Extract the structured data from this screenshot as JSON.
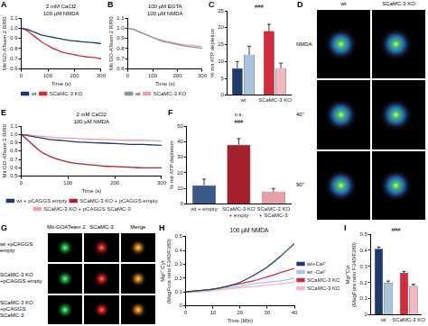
{
  "chart_data": [
    {
      "panel": "A",
      "type": "line",
      "annotations": [
        "2 mM CaCl2",
        "100 µM NMDA"
      ],
      "x_label": "Time (s)",
      "y_label": "Mit GO-ATeam 2 R/R0",
      "x": [
        0,
        20,
        40,
        60,
        80,
        100,
        120,
        140,
        160,
        180,
        200,
        220,
        240,
        260,
        280,
        300
      ],
      "series": [
        {
          "name": "wt",
          "color": "#1f3b6e",
          "values": [
            1.0,
            0.99,
            0.97,
            0.95,
            0.93,
            0.92,
            0.91,
            0.9,
            0.89,
            0.88,
            0.875,
            0.87,
            0.865,
            0.86,
            0.855,
            0.85
          ]
        },
        {
          "name": "SCaMC-3 KO",
          "color": "#d42a3c",
          "values": [
            1.0,
            0.98,
            0.94,
            0.9,
            0.86,
            0.83,
            0.8,
            0.78,
            0.76,
            0.75,
            0.74,
            0.73,
            0.72,
            0.715,
            0.71,
            0.7
          ]
        }
      ],
      "xlim": [
        0,
        300
      ],
      "xticks": [
        0,
        100,
        200,
        300
      ],
      "ylim": [
        0.6,
        1.1
      ],
      "yticks": [
        0.6,
        0.7,
        0.8,
        0.9,
        {
          "value": 1,
          "label": "1.0"
        },
        1.1
      ],
      "grid": false,
      "legend": "bottom"
    },
    {
      "panel": "B",
      "type": "line",
      "annotations": [
        "100 µM EGTA",
        "100 µM NMDA"
      ],
      "x_label": "Time (s)",
      "y_label": "Mit GO-ATeam 2 R/R0",
      "x": [
        0,
        20,
        40,
        60,
        80,
        100,
        120,
        140,
        160,
        180,
        200,
        220,
        240,
        260,
        280,
        300
      ],
      "series": [
        {
          "name": "wt",
          "color": "#8a93a6",
          "values": [
            1.0,
            0.99,
            0.97,
            0.95,
            0.93,
            0.91,
            0.89,
            0.87,
            0.86,
            0.85,
            0.84,
            0.83,
            0.82,
            0.815,
            0.81,
            0.8
          ]
        },
        {
          "name": "SCaMC-3 KO",
          "color": "#e8a0a8",
          "values": [
            1.0,
            0.99,
            0.97,
            0.95,
            0.93,
            0.91,
            0.895,
            0.88,
            0.87,
            0.86,
            0.85,
            0.84,
            0.835,
            0.83,
            0.825,
            0.82
          ]
        }
      ],
      "xlim": [
        0,
        300
      ],
      "xticks": [
        0,
        100,
        200,
        300
      ],
      "ylim": [
        0.6,
        1.1
      ],
      "yticks": [
        0.6,
        0.7,
        0.8,
        0.9,
        {
          "value": 1,
          "label": "1.0"
        },
        1.1
      ],
      "grid": false,
      "legend": "bottom"
    },
    {
      "panel": "C",
      "type": "bar",
      "annotations": [
        "###"
      ],
      "y_label": "% mit ATP depletion",
      "categories": [
        "wt",
        "SCaMC-3 KO"
      ],
      "series": [
        {
          "colors": [
            "#1f3b6e",
            "#d42a3c"
          ],
          "values": [
            8,
            19
          ],
          "errors": [
            2,
            2
          ]
        },
        {
          "colors": [
            "#a8c4e0",
            "#f0b8c0"
          ],
          "values": [
            12,
            8
          ],
          "errors": [
            2.5,
            1.5
          ]
        }
      ],
      "ylim": [
        0,
        25
      ],
      "yticks": [
        0,
        5,
        10,
        15,
        20,
        25
      ],
      "grid": false
    },
    {
      "panel": "E",
      "type": "line",
      "annotations": [
        "2 mM CaCl2",
        "100 µM NMDA"
      ],
      "x_label": "Time (s)",
      "y_label": "Mit GO-ATeam 2 R/R0",
      "x": [
        0,
        20,
        40,
        60,
        80,
        100,
        120,
        140,
        160,
        180,
        200,
        220,
        240,
        260,
        280,
        300
      ],
      "series": [
        {
          "name": "wt + pCAGGS empty",
          "color": "#1f3b6e",
          "values": [
            1.0,
            0.98,
            0.96,
            0.94,
            0.93,
            0.92,
            0.91,
            0.905,
            0.9,
            0.895,
            0.89,
            0.885,
            0.88,
            0.88,
            0.875,
            0.87
          ]
        },
        {
          "name": "SCaMC-3 KO + pCAGGS empty",
          "color": "#b0202e",
          "values": [
            1.0,
            0.9,
            0.8,
            0.74,
            0.7,
            0.67,
            0.65,
            0.64,
            0.63,
            0.62,
            0.615,
            0.61,
            0.605,
            0.6,
            0.6,
            0.6
          ]
        },
        {
          "name": "SCaMC-3 KO + pCAGGS SCaMC-3",
          "color": "#e8a0a8",
          "values": [
            1.0,
            0.99,
            0.98,
            0.97,
            0.96,
            0.955,
            0.95,
            0.945,
            0.94,
            0.94,
            0.935,
            0.93,
            0.93,
            0.93,
            0.925,
            0.92
          ]
        }
      ],
      "xlim": [
        0,
        300
      ],
      "xticks": [
        0,
        100,
        200,
        300
      ],
      "ylim": [
        0.5,
        1.1
      ],
      "yticks": [
        0.5,
        0.6,
        0.7,
        0.8,
        0.9,
        {
          "value": 1,
          "label": "1.0"
        },
        1.1
      ],
      "grid": false,
      "legend": "bottom"
    },
    {
      "panel": "F",
      "type": "bar",
      "annotations": [
        "n.s.",
        "###"
      ],
      "y_label": "% mit ATP depletion",
      "categories": [
        "wt + empty",
        "SCaMC-3 KO + empty",
        "SCaMC-3 KO + SCaMC-3"
      ],
      "values": [
        12,
        38,
        8
      ],
      "errors": [
        4,
        4,
        2
      ],
      "colors": [
        "#3a5a8c",
        "#a3202c",
        "#e8a0a8"
      ],
      "ylim": [
        0,
        50
      ],
      "yticks": [
        0,
        10,
        20,
        30,
        40,
        50
      ],
      "grid": false
    },
    {
      "panel": "H",
      "type": "line",
      "title": "100 µM NMDA",
      "x_label": "Time (Min)",
      "y_label": "Mg²⁺ Cyt (MagFura ratio F340/F380)",
      "x": [
        0,
        5,
        10,
        15,
        20,
        25,
        30,
        35,
        40
      ],
      "series": [
        {
          "name": "wt+Ca²⁺",
          "color": "#1f3b6e",
          "values": [
            0.1,
            0.11,
            0.12,
            0.14,
            0.17,
            0.22,
            0.28,
            0.36,
            0.45
          ]
        },
        {
          "name": "wt -Ca²⁺",
          "color": "#a8c4e0",
          "values": [
            0.1,
            0.11,
            0.12,
            0.13,
            0.14,
            0.16,
            0.17,
            0.18,
            0.2
          ]
        },
        {
          "name": "SCaMC-3 KO +Ca²⁺",
          "color": "#d42a3c",
          "values": [
            0.1,
            0.11,
            0.12,
            0.14,
            0.16,
            0.18,
            0.21,
            0.24,
            0.27
          ]
        },
        {
          "name": "SCaMC-3 KO -Ca²⁺",
          "color": "#f0b8c0",
          "values": [
            0.1,
            0.1,
            0.11,
            0.12,
            0.13,
            0.14,
            0.15,
            0.16,
            0.17
          ]
        }
      ],
      "xlim": [
        0,
        40
      ],
      "xticks": [
        0,
        10,
        20,
        30,
        40
      ],
      "ylim": [
        0,
        0.5
      ],
      "yticks": [
        0,
        0.1,
        0.2,
        0.3,
        0.4,
        0.5
      ],
      "grid": false,
      "legend": "right"
    },
    {
      "panel": "I",
      "type": "bar",
      "annotations": [
        "###"
      ],
      "y_label": "Mg²⁺Cyt (MagFura ratio F340/F380)",
      "categories": [
        "wt",
        "SCaMC-3 KO"
      ],
      "series": [
        {
          "colors": [
            "#1f3b6e",
            "#d42a3c"
          ],
          "values": [
            0.41,
            0.26
          ],
          "errors": [
            0.01,
            0.01
          ]
        },
        {
          "colors": [
            "#a8c4e0",
            "#f0b8c0"
          ],
          "values": [
            0.2,
            0.18
          ],
          "errors": [
            0.01,
            0.01
          ]
        }
      ],
      "ylim": [
        0,
        0.5
      ],
      "yticks": [
        0,
        0.1,
        0.2,
        0.3,
        0.4,
        0.5
      ],
      "grid": false
    }
  ],
  "images": [
    {
      "panel": "D",
      "columns": [
        "wt",
        "SCaMC-3 KO"
      ],
      "rows": [
        "NMDA",
        "40''",
        "90''"
      ]
    },
    {
      "panel": "G",
      "columns": [
        "Mit-GOATeam 2",
        "SCaMC-3",
        "Merge"
      ],
      "rows": [
        "wt +pCAGGS empty",
        "SCaMC-3 KO +pCAGGS empty",
        "SCaMC-3 KO +pCAGGS SCaMC-3"
      ]
    }
  ]
}
